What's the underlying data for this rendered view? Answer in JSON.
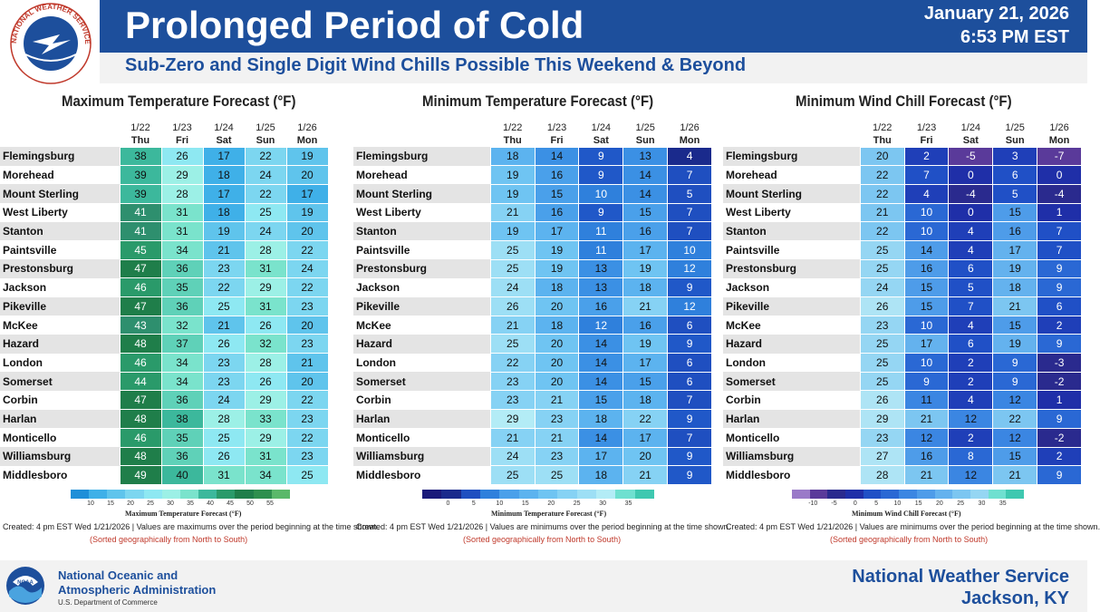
{
  "header": {
    "title": "Prolonged Period of Cold",
    "subtitle": "Sub-Zero and Single Digit Wind Chills Possible This Weekend & Beyond",
    "date": "January 21, 2026",
    "time": "6:53 PM EST",
    "logo_text": "NATIONAL WEATHER SERVICE"
  },
  "footer": {
    "agency_line1": "National Oceanic and",
    "agency_line2": "Atmospheric Administration",
    "department": "U.S. Department of Commerce",
    "office_name": "National Weather Service",
    "office_location": "Jackson, KY",
    "noaa_logo_text": "NOAA"
  },
  "notes": {
    "created_max": "Created: 4 pm EST Wed 1/21/2026  |  Values are maximums over the period beginning at the time shown.",
    "created_min": "Created: 4 pm EST Wed 1/21/2026  |  Values are minimums over the period beginning at the time shown.",
    "created_wc": "Created: 4 pm EST Wed 1/21/2026  |  Values are minimums over the period beginning at the time shown.",
    "sorted": "(Sorted geographically from North to South)"
  },
  "chart_data": [
    {
      "type": "table",
      "title": "Maximum Temperature Forecast (°F)",
      "colorbar_label": "Maximum Temperature Forecast (°F)",
      "colorbar_ticks": [
        "10",
        "15",
        "20",
        "25",
        "30",
        "35",
        "40",
        "45",
        "50",
        "55"
      ],
      "dates": [
        "1/22",
        "1/23",
        "1/24",
        "1/25",
        "1/26"
      ],
      "days": [
        "Thu",
        "Fri",
        "Sat",
        "Sun",
        "Mon"
      ],
      "locations": [
        "Flemingsburg",
        "Morehead",
        "Mount Sterling",
        "West Liberty",
        "Stanton",
        "Paintsville",
        "Prestonsburg",
        "Jackson",
        "Pikeville",
        "McKee",
        "Hazard",
        "London",
        "Somerset",
        "Corbin",
        "Harlan",
        "Monticello",
        "Williamsburg",
        "Middlesboro"
      ],
      "values": [
        [
          38,
          26,
          17,
          22,
          19
        ],
        [
          39,
          29,
          18,
          24,
          20
        ],
        [
          39,
          28,
          17,
          22,
          17
        ],
        [
          41,
          31,
          18,
          25,
          19
        ],
        [
          41,
          31,
          19,
          24,
          20
        ],
        [
          45,
          34,
          21,
          28,
          22
        ],
        [
          47,
          36,
          23,
          31,
          24
        ],
        [
          46,
          35,
          22,
          29,
          22
        ],
        [
          47,
          36,
          25,
          31,
          23
        ],
        [
          43,
          32,
          21,
          26,
          20
        ],
        [
          48,
          37,
          26,
          32,
          23
        ],
        [
          46,
          34,
          23,
          28,
          21
        ],
        [
          44,
          34,
          23,
          26,
          20
        ],
        [
          47,
          36,
          24,
          29,
          22
        ],
        [
          48,
          38,
          28,
          33,
          23
        ],
        [
          46,
          35,
          25,
          29,
          22
        ],
        [
          48,
          36,
          26,
          31,
          23
        ],
        [
          49,
          40,
          31,
          34,
          25
        ]
      ]
    },
    {
      "type": "table",
      "title": "Minimum Temperature Forecast (°F)",
      "colorbar_label": "Minimum Temperature Forecast (°F)",
      "colorbar_ticks": [
        "0",
        "5",
        "10",
        "15",
        "20",
        "25",
        "30",
        "35"
      ],
      "dates": [
        "1/22",
        "1/23",
        "1/24",
        "1/25",
        "1/26"
      ],
      "days": [
        "Thu",
        "Fri",
        "Sat",
        "Sun",
        "Mon"
      ],
      "locations": [
        "Flemingsburg",
        "Morehead",
        "Mount Sterling",
        "West Liberty",
        "Stanton",
        "Paintsville",
        "Prestonsburg",
        "Jackson",
        "Pikeville",
        "McKee",
        "Hazard",
        "London",
        "Somerset",
        "Corbin",
        "Harlan",
        "Monticello",
        "Williamsburg",
        "Middlesboro"
      ],
      "values": [
        [
          18,
          14,
          9,
          13,
          4
        ],
        [
          19,
          16,
          9,
          14,
          7
        ],
        [
          19,
          15,
          10,
          14,
          5
        ],
        [
          21,
          16,
          9,
          15,
          7
        ],
        [
          19,
          17,
          11,
          16,
          7
        ],
        [
          25,
          19,
          11,
          17,
          10
        ],
        [
          25,
          19,
          13,
          19,
          12
        ],
        [
          24,
          18,
          13,
          18,
          9
        ],
        [
          26,
          20,
          16,
          21,
          12
        ],
        [
          21,
          18,
          12,
          16,
          6
        ],
        [
          25,
          20,
          14,
          19,
          9
        ],
        [
          22,
          20,
          14,
          17,
          6
        ],
        [
          23,
          20,
          14,
          15,
          6
        ],
        [
          23,
          21,
          15,
          18,
          7
        ],
        [
          29,
          23,
          18,
          22,
          9
        ],
        [
          21,
          21,
          14,
          17,
          7
        ],
        [
          24,
          23,
          17,
          20,
          9
        ],
        [
          25,
          25,
          18,
          21,
          9
        ]
      ]
    },
    {
      "type": "table",
      "title": "Minimum Wind Chill Forecast (°F)",
      "colorbar_label": "Minimum Wind Chill Forecast (°F)",
      "colorbar_ticks": [
        "-10",
        "-5",
        "0",
        "5",
        "10",
        "15",
        "20",
        "25",
        "30",
        "35"
      ],
      "dates": [
        "1/22",
        "1/23",
        "1/24",
        "1/25",
        "1/26"
      ],
      "days": [
        "Thu",
        "Fri",
        "Sat",
        "Sun",
        "Mon"
      ],
      "locations": [
        "Flemingsburg",
        "Morehead",
        "Mount Sterling",
        "West Liberty",
        "Stanton",
        "Paintsville",
        "Prestonsburg",
        "Jackson",
        "Pikeville",
        "McKee",
        "Hazard",
        "London",
        "Somerset",
        "Corbin",
        "Harlan",
        "Monticello",
        "Williamsburg",
        "Middlesboro"
      ],
      "values": [
        [
          20,
          2,
          -5,
          3,
          -7
        ],
        [
          22,
          7,
          0,
          6,
          0
        ],
        [
          22,
          4,
          -4,
          5,
          -4
        ],
        [
          21,
          10,
          0,
          15,
          1
        ],
        [
          22,
          10,
          4,
          16,
          7
        ],
        [
          25,
          14,
          4,
          17,
          7
        ],
        [
          25,
          16,
          6,
          19,
          9
        ],
        [
          24,
          15,
          5,
          18,
          9
        ],
        [
          26,
          15,
          7,
          21,
          6
        ],
        [
          23,
          10,
          4,
          15,
          2
        ],
        [
          25,
          17,
          6,
          19,
          9
        ],
        [
          25,
          10,
          2,
          9,
          -3
        ],
        [
          25,
          9,
          2,
          9,
          -2
        ],
        [
          26,
          11,
          4,
          12,
          1
        ],
        [
          29,
          21,
          12,
          22,
          9
        ],
        [
          23,
          12,
          2,
          12,
          -2
        ],
        [
          27,
          16,
          8,
          15,
          2
        ],
        [
          28,
          21,
          12,
          21,
          9
        ]
      ]
    }
  ]
}
